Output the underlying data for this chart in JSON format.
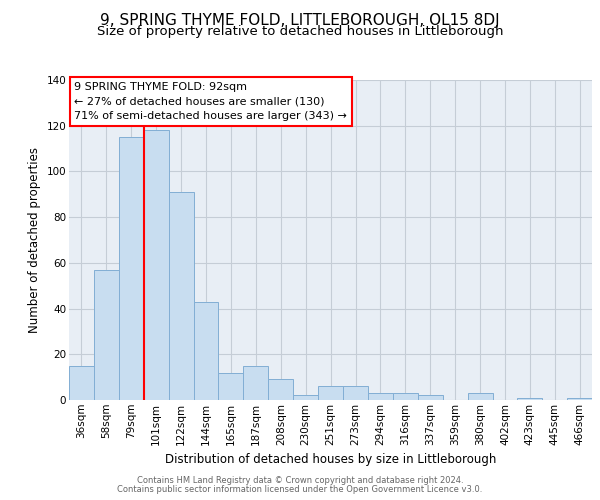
{
  "title_line1": "9, SPRING THYME FOLD, LITTLEBOROUGH, OL15 8DJ",
  "title_line2": "Size of property relative to detached houses in Littleborough",
  "xlabel": "Distribution of detached houses by size in Littleborough",
  "ylabel": "Number of detached properties",
  "bar_labels": [
    "36sqm",
    "58sqm",
    "79sqm",
    "101sqm",
    "122sqm",
    "144sqm",
    "165sqm",
    "187sqm",
    "208sqm",
    "230sqm",
    "251sqm",
    "273sqm",
    "294sqm",
    "316sqm",
    "337sqm",
    "359sqm",
    "380sqm",
    "402sqm",
    "423sqm",
    "445sqm",
    "466sqm"
  ],
  "bar_values": [
    15,
    57,
    115,
    118,
    91,
    43,
    12,
    15,
    9,
    2,
    6,
    6,
    3,
    3,
    2,
    0,
    3,
    0,
    1,
    0,
    1
  ],
  "bar_color": "#c8ddf0",
  "bar_edge_color": "#82aed4",
  "red_line_index": 3,
  "annotation_line1": "9 SPRING THYME FOLD: 92sqm",
  "annotation_line2": "← 27% of detached houses are smaller (130)",
  "annotation_line3": "71% of semi-detached houses are larger (343) →",
  "ylim_max": 140,
  "yticks": [
    0,
    20,
    40,
    60,
    80,
    100,
    120,
    140
  ],
  "grid_color": "#c5cdd6",
  "background_color": "#e8eef5",
  "footer_line1": "Contains HM Land Registry data © Crown copyright and database right 2024.",
  "footer_line2": "Contains public sector information licensed under the Open Government Licence v3.0.",
  "title_fontsize": 11,
  "subtitle_fontsize": 9.5,
  "ylabel_fontsize": 8.5,
  "xlabel_fontsize": 8.5,
  "tick_fontsize": 7.5,
  "annotation_fontsize": 8,
  "footer_fontsize": 6
}
